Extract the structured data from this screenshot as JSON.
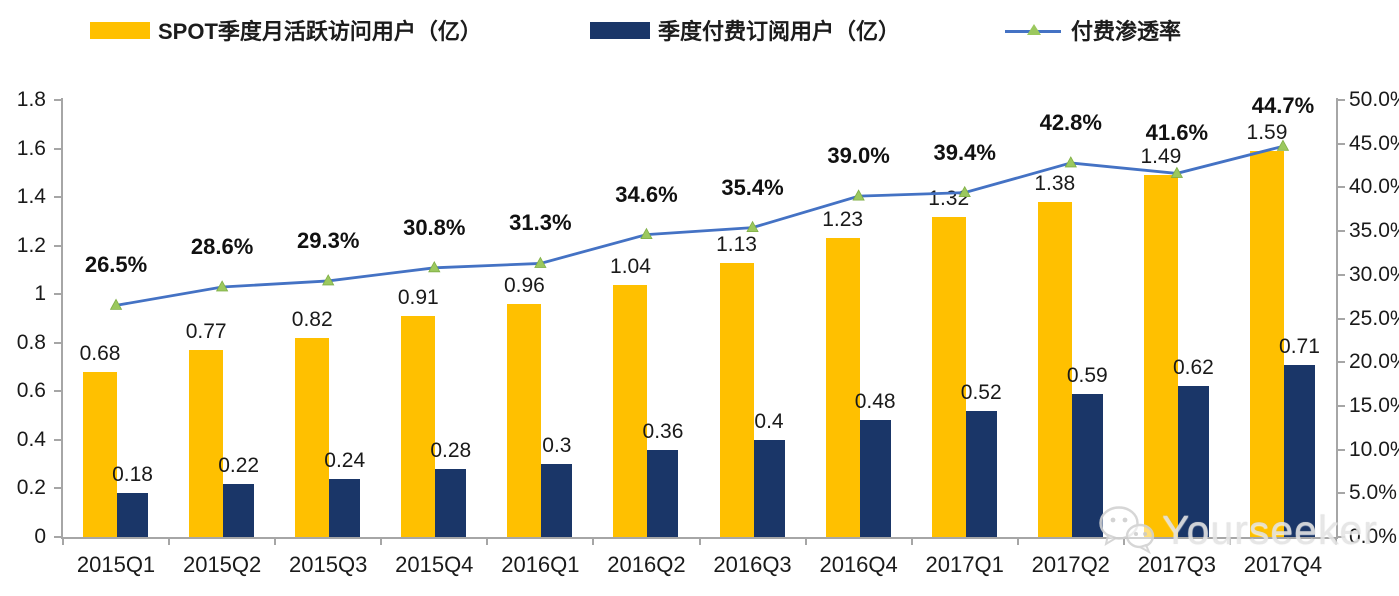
{
  "legend": [
    {
      "label": "SPOT季度月活跃访问用户（亿）",
      "swatch": "bar",
      "color": "#FFC000"
    },
    {
      "label": "季度付费订阅用户（亿）",
      "swatch": "bar",
      "color": "#1A3668"
    },
    {
      "label": "付费渗透率",
      "swatch": "line",
      "color": "#4472C4",
      "marker_color": "#9BC85E"
    }
  ],
  "chart_data": {
    "type": "bar",
    "categories": [
      "2015Q1",
      "2015Q2",
      "2015Q3",
      "2015Q4",
      "2016Q1",
      "2016Q2",
      "2016Q3",
      "2016Q4",
      "2017Q1",
      "2017Q2",
      "2017Q3",
      "2017Q4"
    ],
    "series": [
      {
        "name": "SPOT季度月活跃访问用户（亿）",
        "type": "bar",
        "color": "#FFC000",
        "values": [
          0.68,
          0.77,
          0.82,
          0.91,
          0.96,
          1.04,
          1.13,
          1.23,
          1.32,
          1.38,
          1.49,
          1.59
        ],
        "labels": [
          "0.68",
          "0.77",
          "0.82",
          "0.91",
          "0.96",
          "1.04",
          "1.13",
          "1.23",
          "1.32",
          "1.38",
          "1.49",
          "1.59"
        ]
      },
      {
        "name": "季度付费订阅用户（亿）",
        "type": "bar",
        "color": "#1A3668",
        "values": [
          0.18,
          0.22,
          0.24,
          0.28,
          0.3,
          0.36,
          0.4,
          0.48,
          0.52,
          0.59,
          0.62,
          0.71
        ],
        "labels": [
          "0.18",
          "0.22",
          "0.24",
          "0.28",
          "0.3",
          "0.36",
          "0.4",
          "0.48",
          "0.52",
          "0.59",
          "0.62",
          "0.71"
        ]
      },
      {
        "name": "付费渗透率",
        "type": "line",
        "color": "#4472C4",
        "marker_color": "#9BC85E",
        "values": [
          26.5,
          28.6,
          29.3,
          30.8,
          31.3,
          34.6,
          35.4,
          39.0,
          39.4,
          42.8,
          41.6,
          44.7
        ],
        "labels": [
          "26.5%",
          "28.6%",
          "29.3%",
          "30.8%",
          "31.3%",
          "34.6%",
          "35.4%",
          "39.0%",
          "39.4%",
          "42.8%",
          "41.6%",
          "44.7%"
        ]
      }
    ],
    "left_axis": {
      "min": 0,
      "max": 1.8,
      "ticks": [
        "0",
        "0.2",
        "0.4",
        "0.6",
        "0.8",
        "1",
        "1.2",
        "1.4",
        "1.6",
        "1.8"
      ]
    },
    "right_axis": {
      "min": 0,
      "max": 50,
      "ticks": [
        "0.0%",
        "5.0%",
        "10.0%",
        "15.0%",
        "20.0%",
        "25.0%",
        "30.0%",
        "35.0%",
        "40.0%",
        "45.0%",
        "50.0%"
      ]
    },
    "grid": false,
    "legend_position": "top"
  },
  "watermark": {
    "text": "Yourseeker",
    "icon": "wechat-icon"
  }
}
